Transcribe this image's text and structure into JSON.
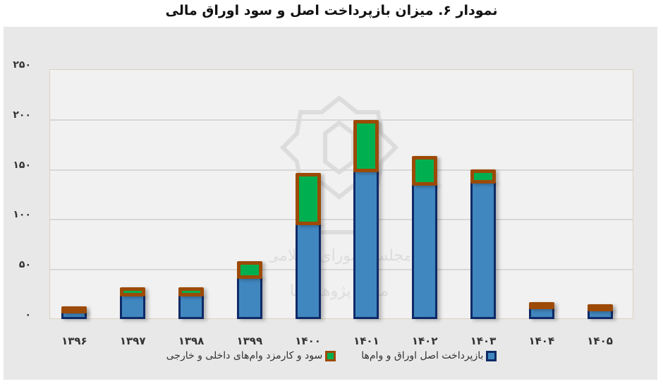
{
  "title": "نمودار ۶. میزان بازپرداخت اصل و سود اوراق مالی",
  "chart_data": {
    "type": "bar",
    "stacked": true,
    "title": "نمودار ۶. میزان بازپرداخت اصل و سود اوراق مالی",
    "xlabel": "",
    "ylabel": "",
    "ylim": [
      0,
      250
    ],
    "yticks": [
      0,
      50,
      100,
      150,
      200,
      250
    ],
    "ytick_labels": [
      "۰",
      "۵۰",
      "۱۰۰",
      "۱۵۰",
      "۲۰۰",
      "۲۵۰"
    ],
    "grid": true,
    "legend_position": "bottom",
    "categories": [
      "۱۳۹۶",
      "۱۳۹۷",
      "۱۳۹۸",
      "۱۳۹۹",
      "۱۴۰۰",
      "۱۴۰۱",
      "۱۴۰۲",
      "۱۴۰۳",
      "۱۴۰۴",
      "۱۴۰۵"
    ],
    "series": [
      {
        "name": "بازپرداخت اصل اوراق و وام‌ها",
        "color": "#4187bf",
        "border_color": "#0f2a67",
        "values": [
          8,
          24,
          24,
          42,
          95,
          148,
          135,
          137,
          11,
          10
        ]
      },
      {
        "name": "سود و کارمزد وام‌های داخلی و خارجی",
        "color": "#00b050",
        "border_color": "#9c4a06",
        "values": [
          5,
          8,
          8,
          16,
          51,
          51,
          28,
          13,
          6,
          5
        ]
      }
    ]
  },
  "legend": {
    "items": [
      {
        "label": "بازپرداخت اصل اوراق و وام‌ها",
        "fill": "#4187bf",
        "border": "#0f2a67"
      },
      {
        "label": "سود و کارمزد وام‌های داخلی و خارجی",
        "fill": "#00b050",
        "border": "#9c4a06"
      }
    ]
  },
  "watermark": {
    "lines": [
      "مجلس شورای اسلامی",
      "مرکز پژوهش‌ها"
    ]
  }
}
